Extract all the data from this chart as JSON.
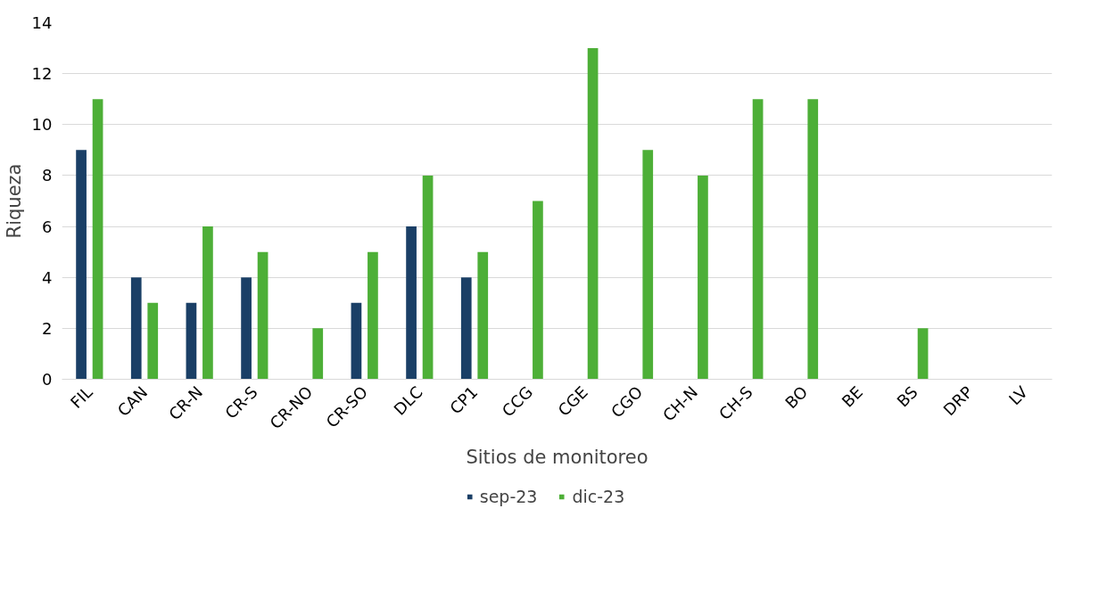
{
  "chart_data": {
    "type": "bar",
    "xlabel": "Sitios de monitoreo",
    "ylabel": "Riqueza",
    "categories": [
      "FIL",
      "CAN",
      "CR-N",
      "CR-S",
      "CR-NO",
      "CR-SO",
      "DLC",
      "CP1",
      "CCG",
      "CGE",
      "CGO",
      "CH-N",
      "CH-S",
      "BO",
      "BE",
      "BS",
      "DRP",
      "LV"
    ],
    "series": [
      {
        "name": "sep-23",
        "color": "#1a3f66",
        "values": [
          9,
          4,
          3,
          4,
          null,
          3,
          6,
          4,
          null,
          null,
          null,
          null,
          null,
          null,
          null,
          null,
          null,
          null
        ]
      },
      {
        "name": "dic-23",
        "color": "#4daf37",
        "values": [
          11,
          3,
          6,
          5,
          2,
          5,
          8,
          5,
          7,
          13,
          9,
          8,
          11,
          11,
          null,
          2,
          null,
          null
        ]
      }
    ],
    "ylim": [
      0,
      14
    ],
    "yticks": [
      0,
      2,
      4,
      6,
      8,
      10,
      12,
      14
    ],
    "grid": "y",
    "legend": "bottom"
  }
}
